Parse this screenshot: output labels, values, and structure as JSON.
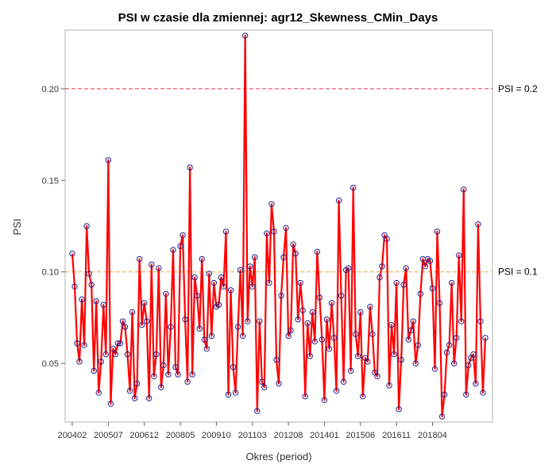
{
  "chart_data": {
    "type": "line",
    "title": "PSI w czasie dla zmiennej: agr12_Skewness_CMin_Days",
    "xlabel": "Okres (period)",
    "ylabel": "PSI",
    "x_tick_labels": [
      "200402",
      "200507",
      "200612",
      "200805",
      "200910",
      "201103",
      "201208",
      "201401",
      "201506",
      "201611",
      "201804"
    ],
    "y_ticks": [
      0.05,
      0.1,
      0.15,
      0.2
    ],
    "y_tick_labels": [
      "0.05",
      "0.10",
      "0.15",
      "0.20"
    ],
    "ylim": [
      0.018,
      0.232
    ],
    "x_start": "200402",
    "grid": false,
    "reference_lines": [
      {
        "value": 0.2,
        "label": "PSI = 0.2",
        "color": "#e8334a",
        "style": "dashed"
      },
      {
        "value": 0.1,
        "label": "PSI = 0.1",
        "color": "#e8a63a",
        "style": "dashed"
      }
    ],
    "series": [
      {
        "line_color": "#ff0000",
        "marker_color": "#1f1f8f",
        "values": [
          0.11,
          0.092,
          0.061,
          0.051,
          0.085,
          0.06,
          0.125,
          0.099,
          0.093,
          0.046,
          0.084,
          0.034,
          0.051,
          0.082,
          0.055,
          0.161,
          0.028,
          0.058,
          0.055,
          0.061,
          0.061,
          0.073,
          0.07,
          0.055,
          0.035,
          0.078,
          0.031,
          0.039,
          0.107,
          0.071,
          0.083,
          0.073,
          0.031,
          0.104,
          0.043,
          0.055,
          0.102,
          0.037,
          0.049,
          0.088,
          0.044,
          0.07,
          0.112,
          0.048,
          0.044,
          0.114,
          0.12,
          0.074,
          0.04,
          0.157,
          0.044,
          0.097,
          0.087,
          0.069,
          0.107,
          0.063,
          0.058,
          0.099,
          0.065,
          0.094,
          0.081,
          0.082,
          0.097,
          0.092,
          0.122,
          0.033,
          0.09,
          0.048,
          0.034,
          0.07,
          0.101,
          0.065,
          0.229,
          0.073,
          0.103,
          0.092,
          0.108,
          0.024,
          0.073,
          0.04,
          0.037,
          0.121,
          0.094,
          0.137,
          0.122,
          0.052,
          0.039,
          0.087,
          0.108,
          0.124,
          0.065,
          0.068,
          0.115,
          0.11,
          0.074,
          0.094,
          0.079,
          0.032,
          0.072,
          0.054,
          0.078,
          0.062,
          0.111,
          0.086,
          0.063,
          0.03,
          0.074,
          0.058,
          0.083,
          0.064,
          0.035,
          0.139,
          0.087,
          0.04,
          0.101,
          0.102,
          0.046,
          0.146,
          0.066,
          0.054,
          0.078,
          0.032,
          0.053,
          0.051,
          0.081,
          0.066,
          0.045,
          0.043,
          0.097,
          0.103,
          0.12,
          0.118,
          0.038,
          0.071,
          0.055,
          0.094,
          0.025,
          0.052,
          0.093,
          0.102,
          0.063,
          0.068,
          0.073,
          0.05,
          0.06,
          0.088,
          0.107,
          0.103,
          0.107,
          0.106,
          0.091,
          0.047,
          0.122,
          0.083,
          0.021,
          0.033,
          0.056,
          0.06,
          0.094,
          0.05,
          0.064,
          0.109,
          0.073,
          0.145,
          0.033,
          0.049,
          0.053,
          0.055,
          0.039,
          0.126,
          0.073,
          0.034,
          0.064
        ]
      }
    ]
  }
}
